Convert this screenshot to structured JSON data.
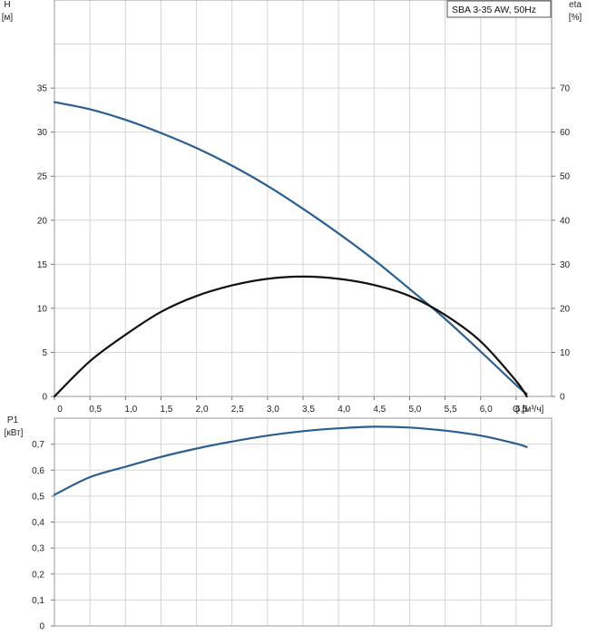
{
  "chart_data": [
    {
      "type": "line",
      "title": "",
      "legend_text": "SBA 3-35 AW, 50Hz",
      "legend_position": "top-right",
      "grid": true,
      "x_axis": {
        "unit_label": "Q [м³/ч]",
        "range": [
          0,
          7.0
        ],
        "ticks": [
          0,
          0.5,
          1.0,
          1.5,
          2.0,
          2.5,
          3.0,
          3.5,
          4.0,
          4.5,
          5.0,
          5.5,
          6.0,
          6.5
        ],
        "tick_labels": [
          "0",
          "0,5",
          "1,0",
          "1,5",
          "2,0",
          "2,5",
          "3,0",
          "3,5",
          "4,0",
          "4,5",
          "5,0",
          "5,5",
          "6,0",
          "6,5"
        ]
      },
      "y_left": {
        "label": "H",
        "unit": "[м]",
        "range": [
          0,
          45
        ],
        "ticks": [
          0,
          5,
          10,
          15,
          20,
          25,
          30,
          35
        ],
        "tick_labels": [
          "0",
          "5",
          "10",
          "15",
          "20",
          "25",
          "30",
          "35"
        ]
      },
      "y_right": {
        "label": "eta",
        "unit": "[%]",
        "range": [
          0,
          90
        ],
        "ticks": [
          0,
          10,
          20,
          30,
          40,
          50,
          60,
          70
        ],
        "tick_labels": [
          "0",
          "10",
          "20",
          "30",
          "40",
          "50",
          "60",
          "70"
        ]
      },
      "series": [
        {
          "axis": "left",
          "color": "#2a5f90",
          "x": [
            0,
            0.5,
            1.0,
            1.5,
            2.0,
            2.5,
            3.0,
            3.5,
            4.0,
            4.5,
            5.0,
            5.5,
            6.0,
            6.5,
            6.65
          ],
          "y": [
            33.4,
            32.6,
            31.4,
            29.9,
            28.2,
            26.2,
            23.9,
            21.3,
            18.5,
            15.5,
            12.2,
            8.8,
            5.1,
            1.3,
            0.3
          ]
        },
        {
          "axis": "right",
          "color": "#111111",
          "x": [
            0,
            0.5,
            1.0,
            1.5,
            2.0,
            2.5,
            3.0,
            3.5,
            4.0,
            4.5,
            5.0,
            5.5,
            6.0,
            6.5,
            6.65
          ],
          "y": [
            0,
            8.0,
            14.0,
            19.2,
            22.8,
            25.2,
            26.7,
            27.2,
            26.7,
            25.3,
            22.8,
            18.5,
            12.5,
            3.5,
            0
          ]
        }
      ]
    },
    {
      "type": "line",
      "title": "",
      "grid": true,
      "x_axis": {
        "range": [
          0,
          7.0
        ]
      },
      "y_left": {
        "label": "P1",
        "unit": "[кВт]",
        "range": [
          0,
          0.8
        ],
        "ticks": [
          0,
          0.1,
          0.2,
          0.3,
          0.4,
          0.5,
          0.6,
          0.7
        ],
        "tick_labels": [
          "0",
          "0,1",
          "0,2",
          "0,3",
          "0,4",
          "0,5",
          "0,6",
          "0,7"
        ]
      },
      "series": [
        {
          "axis": "left",
          "color": "#2a5f90",
          "x": [
            0,
            0.5,
            1.0,
            1.5,
            2.0,
            2.5,
            3.0,
            3.5,
            4.0,
            4.5,
            5.0,
            5.5,
            6.0,
            6.5,
            6.65
          ],
          "y": [
            0.505,
            0.573,
            0.613,
            0.651,
            0.683,
            0.71,
            0.733,
            0.75,
            0.761,
            0.767,
            0.764,
            0.752,
            0.733,
            0.702,
            0.689
          ]
        }
      ]
    }
  ]
}
